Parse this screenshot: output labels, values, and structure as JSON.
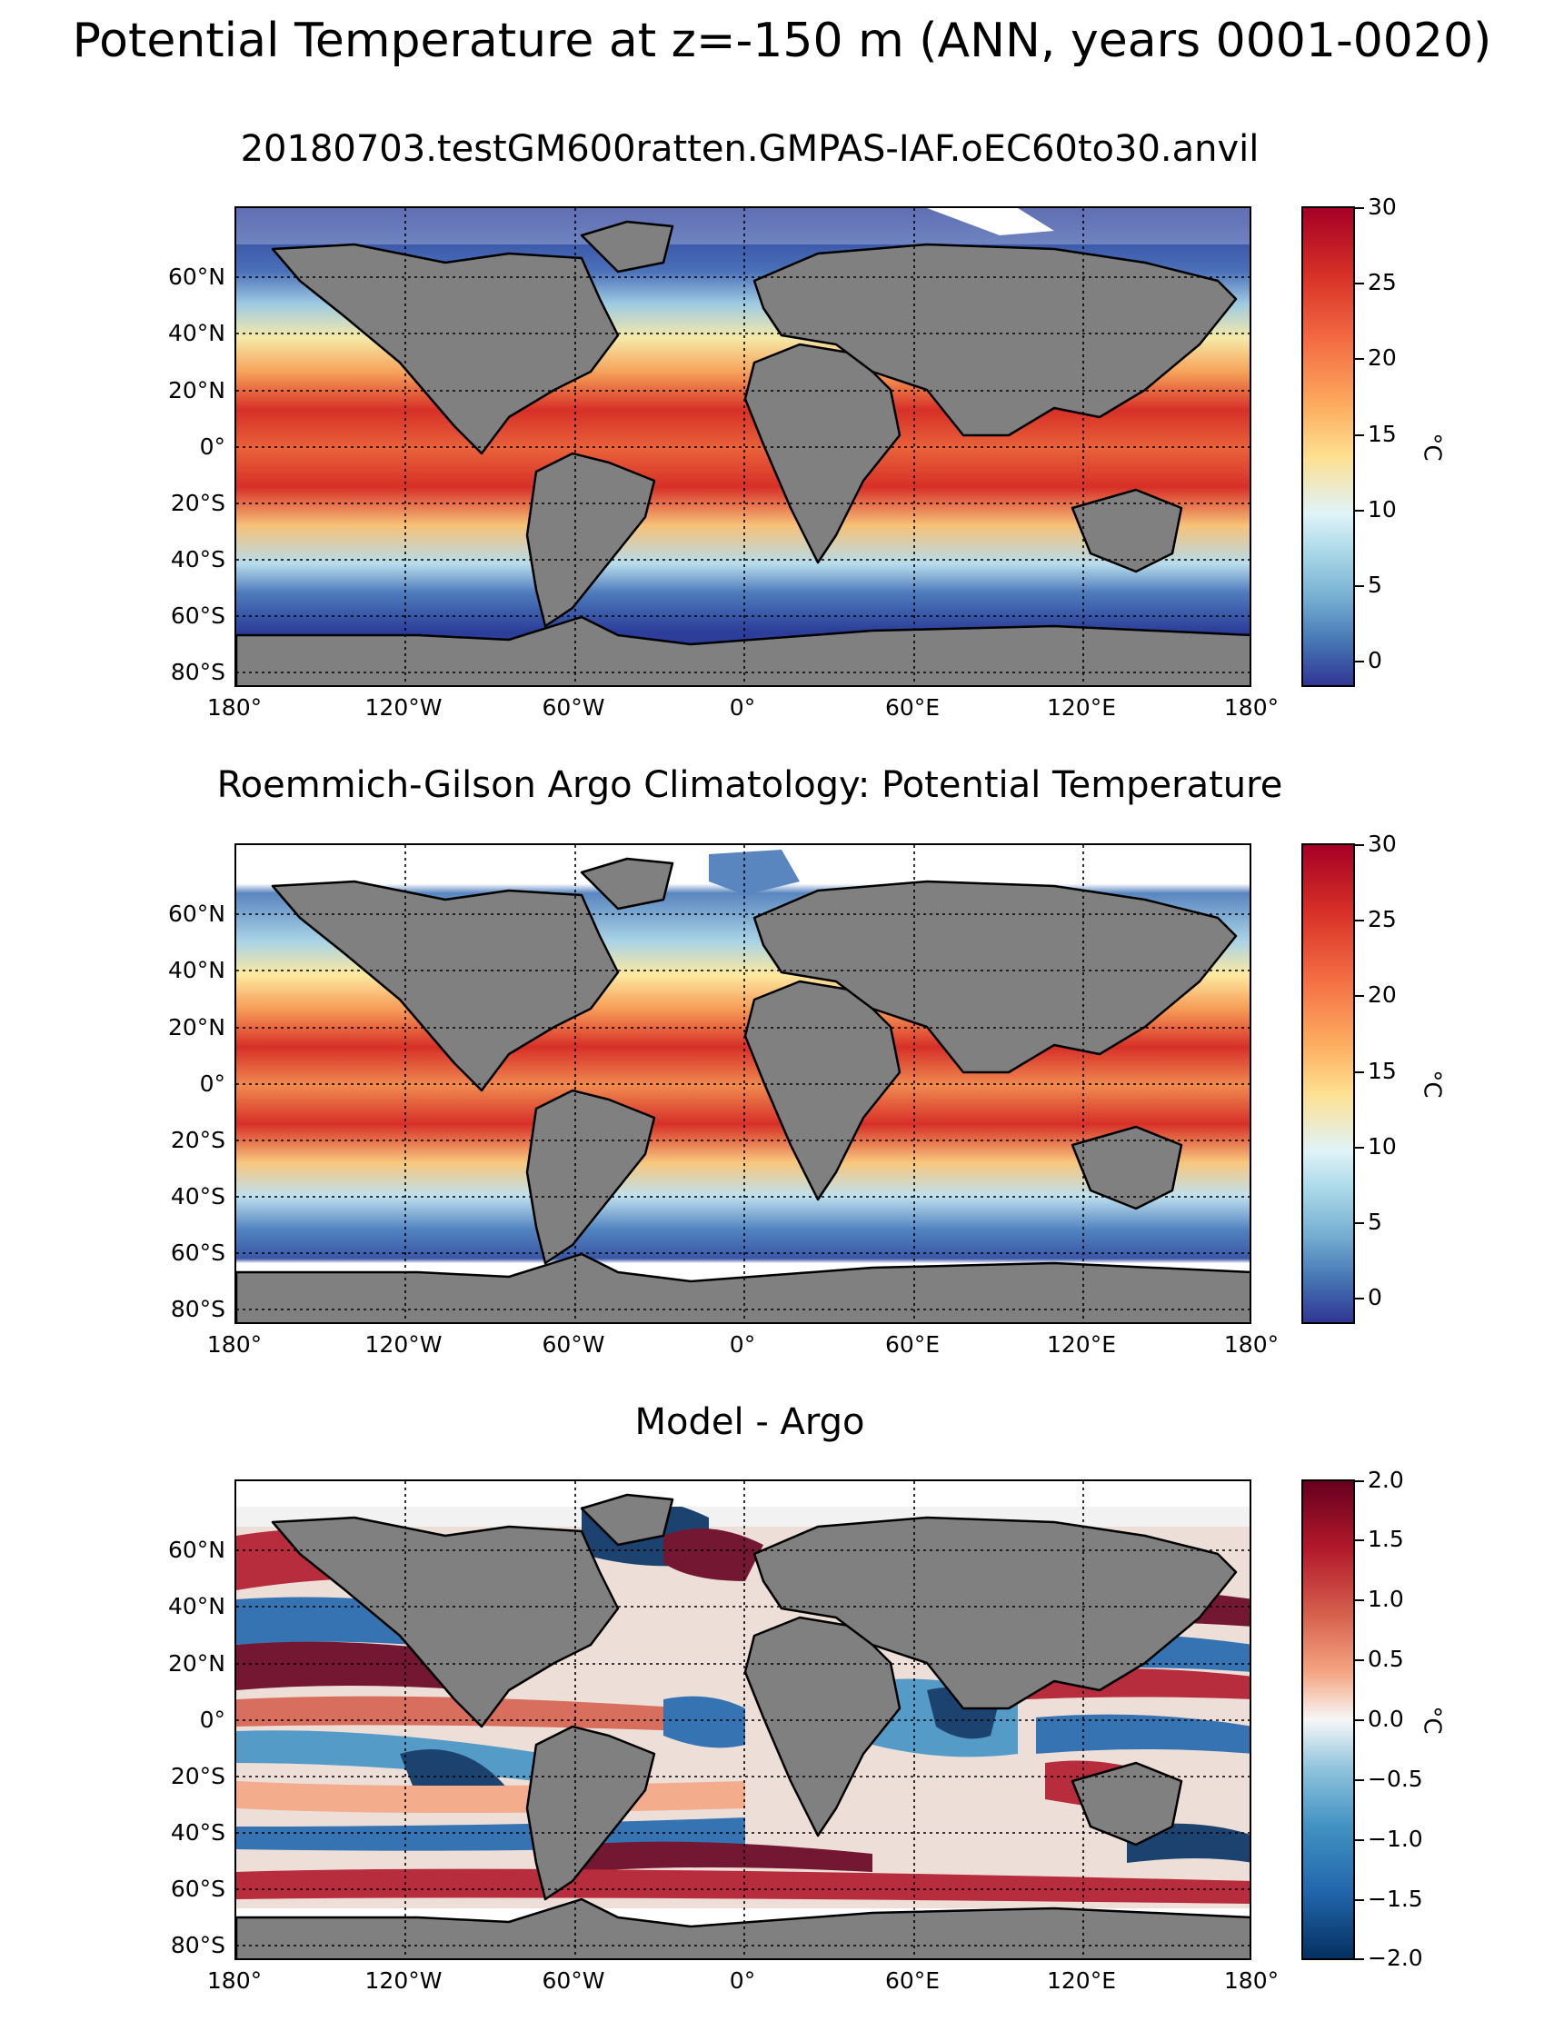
{
  "figure": {
    "suptitle": "Potential Temperature at z=-150 m (ANN, years 0001-0020)"
  },
  "panels": [
    {
      "title": "20180703.testGM600ratten.GMPAS-IAF.oEC60to30.anvil",
      "colormap": "RdYlBu_r",
      "colorbar": {
        "ticks": [
          "30",
          "25",
          "20",
          "15",
          "10",
          "5",
          "0"
        ],
        "label": "°C"
      }
    },
    {
      "title": "Roemmich-Gilson Argo Climatology: Potential Temperature",
      "colormap": "RdYlBu_r",
      "colorbar": {
        "ticks": [
          "30",
          "25",
          "20",
          "15",
          "10",
          "5",
          "0"
        ],
        "label": "°C"
      }
    },
    {
      "title": "Model - Argo",
      "colormap": "RdBu_r",
      "colorbar": {
        "ticks": [
          "2.0",
          "1.5",
          "1.0",
          "0.5",
          "0.0",
          "−0.5",
          "−1.0",
          "−1.5",
          "−2.0"
        ],
        "label": "°C"
      }
    }
  ],
  "axes": {
    "lat_ticks": [
      "60°N",
      "40°N",
      "20°N",
      "0°",
      "20°S",
      "40°S",
      "60°S",
      "80°S"
    ],
    "lon_ticks": [
      "180°",
      "120°W",
      "60°W",
      "0°",
      "60°E",
      "120°E",
      "180°"
    ]
  },
  "colors": {
    "land": "#808080",
    "coast": "#000000",
    "missing": "#ffffff"
  }
}
